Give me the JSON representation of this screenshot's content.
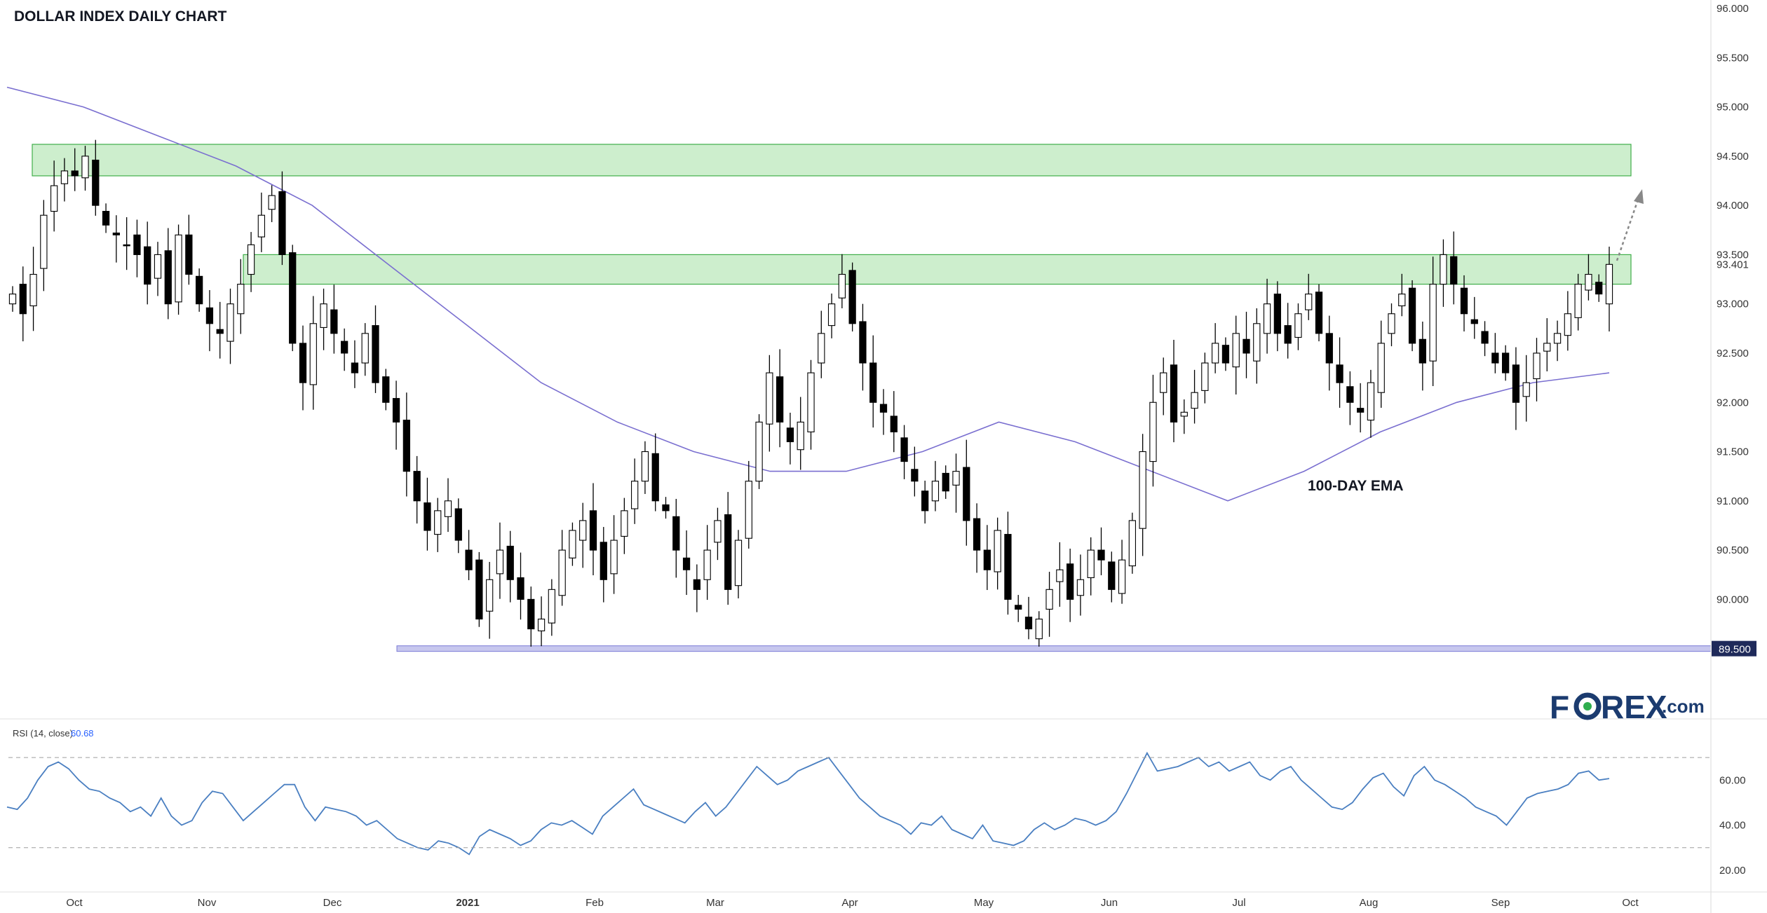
{
  "title": "DOLLAR INDEX DAILY CHART",
  "chart_data": [
    {
      "type": "candlestick",
      "title": "DOLLAR INDEX DAILY CHART",
      "ylim": [
        88.9,
        96.0
      ],
      "y_ticks": [
        "96.000",
        "95.500",
        "95.000",
        "94.500",
        "94.000",
        "93.500",
        "93.000",
        "92.500",
        "92.000",
        "91.500",
        "91.000",
        "90.500",
        "90.000"
      ],
      "x_ticks": [
        "Oct",
        "Nov",
        "Dec",
        "2021",
        "Feb",
        "Mar",
        "Apr",
        "May",
        "Jun",
        "Jul",
        "Aug",
        "Sep",
        "Oct"
      ],
      "last_price_label": "93.401",
      "support_label": "89.500",
      "support_level": 89.5,
      "resistance_zones": [
        {
          "low": 94.3,
          "high": 94.62
        },
        {
          "low": 93.2,
          "high": 93.5
        }
      ],
      "ema_label": "100-DAY EMA",
      "ema_color": "#9933cc",
      "zone_color": "#cdeecd",
      "support_color": "#7b7bd6",
      "grid": false,
      "close_approx": [
        93.1,
        92.9,
        93.3,
        93.9,
        94.2,
        94.35,
        94.3,
        94.5,
        94.0,
        93.8,
        93.7,
        93.6,
        93.5,
        93.2,
        93.5,
        93.0,
        93.7,
        93.3,
        93.0,
        92.8,
        92.7,
        93.0,
        93.2,
        93.6,
        93.9,
        94.1,
        93.5,
        92.6,
        92.2,
        92.8,
        93.0,
        92.7,
        92.5,
        92.3,
        92.7,
        92.2,
        92.0,
        91.8,
        91.3,
        91.0,
        90.7,
        90.9,
        91.0,
        90.6,
        90.3,
        89.8,
        90.2,
        90.5,
        90.2,
        90.0,
        89.7,
        89.8,
        90.1,
        90.5,
        90.7,
        90.8,
        90.5,
        90.2,
        90.6,
        90.9,
        91.2,
        91.5,
        91.0,
        90.9,
        90.5,
        90.3,
        90.1,
        90.5,
        90.8,
        90.1,
        90.6,
        91.2,
        91.8,
        92.3,
        91.8,
        91.6,
        91.8,
        92.3,
        92.7,
        93.0,
        93.3,
        92.8,
        92.4,
        92.0,
        91.9,
        91.7,
        91.4,
        91.2,
        90.9,
        91.2,
        91.1,
        91.3,
        90.8,
        90.5,
        90.3,
        90.7,
        90.0,
        89.9,
        89.7,
        89.8,
        90.1,
        90.3,
        90.0,
        90.2,
        90.5,
        90.4,
        90.1,
        90.4,
        90.8,
        91.5,
        92.0,
        92.3,
        91.8,
        91.9,
        92.1,
        92.4,
        92.6,
        92.4,
        92.7,
        92.5,
        92.8,
        93.0,
        92.7,
        92.6,
        92.9,
        93.1,
        92.7,
        92.4,
        92.2,
        92.0,
        91.9,
        92.2,
        92.6,
        92.9,
        93.1,
        92.6,
        92.4,
        93.2,
        93.5,
        93.2,
        92.9,
        92.8,
        92.6,
        92.4,
        92.3,
        92.0,
        92.2,
        92.5,
        92.6,
        92.7,
        92.9,
        93.2,
        93.3,
        93.1,
        93.401
      ],
      "ema_approx": [
        95.2,
        95.0,
        94.7,
        94.4,
        94.0,
        93.4,
        92.8,
        92.2,
        91.8,
        91.5,
        91.3,
        91.3,
        91.5,
        91.8,
        91.6,
        91.3,
        91.0,
        91.3,
        91.7,
        92.0,
        92.2,
        92.3
      ],
      "rsi": {
        "label": "RSI (14, close)",
        "last_value": "60.68",
        "color": "#4a7fc1",
        "ylim": [
          15,
          75
        ],
        "y_ticks": [
          "60.00",
          "40.00",
          "20.00"
        ],
        "bands": [
          70,
          30
        ],
        "values_approx": [
          48,
          47,
          52,
          60,
          66,
          68,
          65,
          60,
          56,
          55,
          52,
          50,
          46,
          48,
          44,
          52,
          44,
          40,
          42,
          50,
          55,
          54,
          48,
          42,
          46,
          50,
          54,
          58,
          58,
          48,
          42,
          48,
          47,
          46,
          44,
          40,
          42,
          38,
          34,
          32,
          30,
          29,
          33,
          32,
          30,
          27,
          35,
          38,
          36,
          34,
          31,
          33,
          38,
          41,
          40,
          42,
          39,
          36,
          44,
          48,
          52,
          56,
          49,
          47,
          45,
          43,
          41,
          46,
          50,
          44,
          48,
          54,
          60,
          66,
          62,
          58,
          60,
          64,
          66,
          68,
          70,
          64,
          58,
          52,
          48,
          44,
          42,
          40,
          36,
          41,
          40,
          44,
          38,
          36,
          34,
          40,
          33,
          32,
          31,
          33,
          38,
          41,
          38,
          40,
          43,
          42,
          40,
          42,
          46,
          54,
          63,
          72,
          64,
          65,
          66,
          68,
          70,
          66,
          68,
          64,
          66,
          68,
          62,
          60,
          64,
          66,
          60,
          56,
          52,
          48,
          47,
          50,
          56,
          61,
          63,
          57,
          53,
          62,
          66,
          60,
          58,
          55,
          52,
          48,
          46,
          44,
          40,
          46,
          52,
          54,
          55,
          56,
          58,
          63,
          64,
          60,
          60.68
        ]
      }
    }
  ],
  "logo": {
    "brand_text_before": "F",
    "brand_text_after": "REX",
    "domain_text": ".com",
    "brand_color": "#1b3b6f",
    "accent_color": "#2fae4f"
  }
}
